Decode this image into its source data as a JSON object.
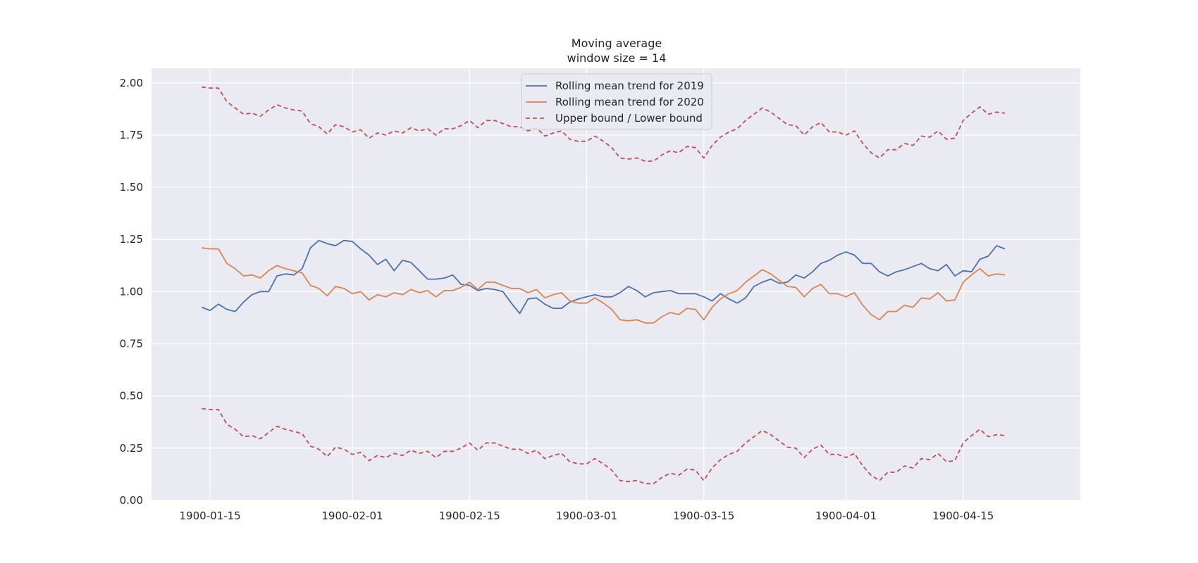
{
  "chart_data": {
    "type": "line",
    "title": "Moving average",
    "subtitle": "window size = 14",
    "xlabel": "",
    "ylabel": "",
    "grid": true,
    "legend_position": "top-center",
    "x_start": "1900-01-14",
    "x_end": "1900-04-23",
    "xlim": [
      "1900-01-08",
      "1900-04-29"
    ],
    "ylim": [
      0.0,
      2.07
    ],
    "x_ticks": [
      "1900-01-15",
      "1900-02-01",
      "1900-02-15",
      "1900-03-01",
      "1900-03-15",
      "1900-04-01",
      "1900-04-15"
    ],
    "y_ticks": [
      "0.00",
      "0.25",
      "0.50",
      "0.75",
      "1.00",
      "1.25",
      "1.50",
      "1.75",
      "2.00"
    ],
    "series": [
      {
        "name": "Rolling mean trend for 2019",
        "color": "#4c72b0",
        "style": "solid",
        "values": [
          0.925,
          0.91,
          0.94,
          0.915,
          0.905,
          0.95,
          0.985,
          1.0,
          1.0,
          1.075,
          1.085,
          1.08,
          1.11,
          1.21,
          1.245,
          1.23,
          1.22,
          1.245,
          1.24,
          1.205,
          1.175,
          1.13,
          1.155,
          1.1,
          1.15,
          1.14,
          1.1,
          1.06,
          1.06,
          1.065,
          1.08,
          1.035,
          1.03,
          1.005,
          1.015,
          1.01,
          1.0,
          0.945,
          0.895,
          0.965,
          0.97,
          0.94,
          0.92,
          0.92,
          0.95,
          0.965,
          0.975,
          0.985,
          0.975,
          0.975,
          0.995,
          1.025,
          1.005,
          0.975,
          0.995,
          1.0,
          1.005,
          0.99,
          0.99,
          0.99,
          0.975,
          0.955,
          0.99,
          0.965,
          0.945,
          0.97,
          1.025,
          1.045,
          1.06,
          1.04,
          1.045,
          1.08,
          1.065,
          1.095,
          1.135,
          1.15,
          1.175,
          1.19,
          1.175,
          1.135,
          1.135,
          1.095,
          1.075,
          1.095,
          1.105,
          1.12,
          1.135,
          1.11,
          1.1,
          1.13,
          1.075,
          1.1,
          1.095,
          1.155,
          1.17,
          1.22,
          1.205
        ]
      },
      {
        "name": "Rolling mean trend for 2020",
        "color": "#dd8452",
        "style": "solid",
        "values": [
          1.21,
          1.205,
          1.205,
          1.135,
          1.11,
          1.075,
          1.08,
          1.065,
          1.1,
          1.125,
          1.11,
          1.1,
          1.09,
          1.03,
          1.015,
          0.98,
          1.025,
          1.015,
          0.99,
          1.0,
          0.96,
          0.985,
          0.975,
          0.995,
          0.985,
          1.01,
          0.995,
          1.005,
          0.975,
          1.005,
          1.005,
          1.02,
          1.045,
          1.01,
          1.045,
          1.045,
          1.03,
          1.015,
          1.015,
          0.995,
          1.01,
          0.97,
          0.985,
          0.995,
          0.955,
          0.945,
          0.945,
          0.97,
          0.945,
          0.915,
          0.865,
          0.86,
          0.865,
          0.85,
          0.85,
          0.88,
          0.9,
          0.89,
          0.92,
          0.915,
          0.865,
          0.925,
          0.965,
          0.99,
          1.005,
          1.045,
          1.075,
          1.105,
          1.085,
          1.055,
          1.025,
          1.02,
          0.975,
          1.015,
          1.035,
          0.99,
          0.99,
          0.975,
          0.995,
          0.935,
          0.89,
          0.865,
          0.905,
          0.905,
          0.935,
          0.925,
          0.97,
          0.965,
          0.995,
          0.955,
          0.96,
          1.045,
          1.08,
          1.11,
          1.075,
          1.085,
          1.08
        ]
      },
      {
        "name": "Upper bound / Lower bound",
        "color": "#c44e52",
        "style": "dashed",
        "values": [
          1.98,
          1.975,
          1.975,
          1.91,
          1.88,
          1.85,
          1.855,
          1.84,
          1.87,
          1.895,
          1.88,
          1.87,
          1.865,
          1.805,
          1.79,
          1.755,
          1.8,
          1.79,
          1.765,
          1.775,
          1.735,
          1.76,
          1.75,
          1.77,
          1.76,
          1.785,
          1.77,
          1.78,
          1.75,
          1.78,
          1.78,
          1.795,
          1.82,
          1.785,
          1.82,
          1.82,
          1.805,
          1.79,
          1.79,
          1.77,
          1.785,
          1.745,
          1.76,
          1.77,
          1.73,
          1.72,
          1.72,
          1.745,
          1.72,
          1.69,
          1.64,
          1.635,
          1.64,
          1.625,
          1.625,
          1.655,
          1.675,
          1.665,
          1.695,
          1.69,
          1.64,
          1.7,
          1.74,
          1.765,
          1.78,
          1.82,
          1.85,
          1.88,
          1.86,
          1.83,
          1.8,
          1.795,
          1.75,
          1.79,
          1.81,
          1.765,
          1.765,
          1.75,
          1.77,
          1.71,
          1.665,
          1.64,
          1.68,
          1.68,
          1.71,
          1.7,
          1.745,
          1.74,
          1.77,
          1.73,
          1.735,
          1.82,
          1.855,
          1.885,
          1.85,
          1.86,
          1.855
        ]
      },
      {
        "name": "",
        "color": "#c44e52",
        "style": "dashed",
        "values": [
          0.44,
          0.435,
          0.435,
          0.365,
          0.34,
          0.305,
          0.31,
          0.295,
          0.325,
          0.355,
          0.34,
          0.33,
          0.32,
          0.26,
          0.245,
          0.21,
          0.255,
          0.245,
          0.22,
          0.23,
          0.19,
          0.215,
          0.205,
          0.225,
          0.215,
          0.24,
          0.225,
          0.235,
          0.205,
          0.235,
          0.235,
          0.25,
          0.275,
          0.24,
          0.275,
          0.275,
          0.26,
          0.245,
          0.245,
          0.225,
          0.24,
          0.2,
          0.215,
          0.225,
          0.185,
          0.175,
          0.175,
          0.2,
          0.175,
          0.145,
          0.095,
          0.09,
          0.095,
          0.08,
          0.08,
          0.11,
          0.13,
          0.12,
          0.15,
          0.145,
          0.095,
          0.155,
          0.195,
          0.22,
          0.235,
          0.275,
          0.305,
          0.335,
          0.315,
          0.285,
          0.255,
          0.25,
          0.205,
          0.245,
          0.265,
          0.22,
          0.22,
          0.205,
          0.225,
          0.165,
          0.12,
          0.095,
          0.135,
          0.135,
          0.165,
          0.155,
          0.2,
          0.195,
          0.225,
          0.185,
          0.19,
          0.275,
          0.31,
          0.34,
          0.305,
          0.315,
          0.31
        ]
      }
    ]
  }
}
